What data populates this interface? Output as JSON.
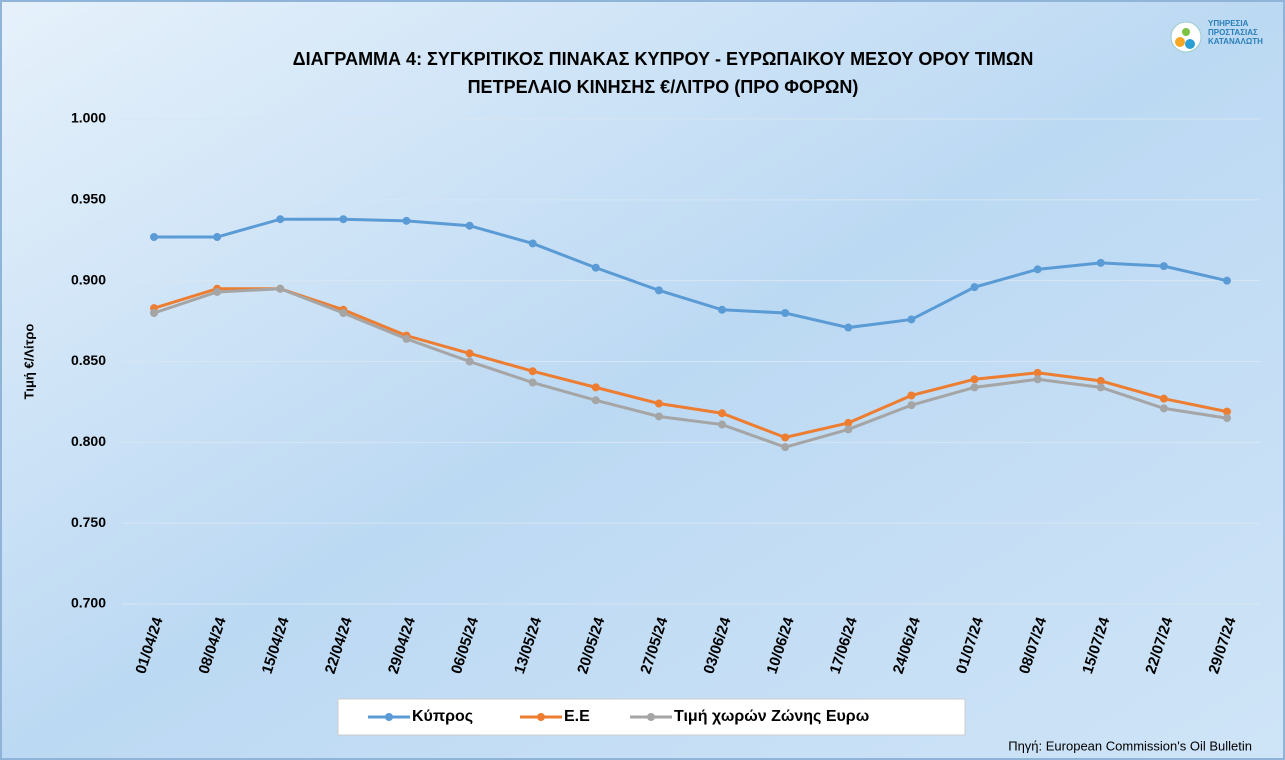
{
  "chart_data": {
    "type": "line",
    "title": [
      "ΔΙΑΓΡΑΜΜΑ 4: ΣΥΓΚΡΙΤΙΚΟΣ ΠΙΝΑΚΑΣ ΚΥΠΡΟΥ - ΕΥΡΩΠΑΙΚΟΥ ΜΕΣΟΥ ΟΡΟΥ ΤΙΜΩΝ",
      "ΠΕΤΡΕΛΑΙΟ ΚΙΝΗΣΗΣ €/ΛΙΤΡΟ (ΠΡΟ ΦΟΡΩΝ)"
    ],
    "logo": [
      "ΥΠΗΡΕΣΙΑ",
      "ΠΡΟΣΤΑΣΙΑΣ",
      "ΚΑΤΑΝΑΛΩΤΗ"
    ],
    "y_label": "Τιμή €/Λίτρο",
    "source": "Πηγή: European Commission's Oil Bulletin",
    "categories": [
      "01/04/24",
      "08/04/24",
      "15/04/24",
      "22/04/24",
      "29/04/24",
      "06/05/24",
      "13/05/24",
      "20/05/24",
      "27/05/24",
      "03/06/24",
      "10/06/24",
      "17/06/24",
      "24/06/24",
      "01/07/24",
      "08/07/24",
      "15/07/24",
      "22/07/24",
      "29/07/24"
    ],
    "series": [
      {
        "name": "Κύπρος",
        "color": "#5b9bd5",
        "values": [
          0.927,
          0.927,
          0.938,
          0.938,
          0.937,
          0.934,
          0.923,
          0.908,
          0.894,
          0.882,
          0.88,
          0.871,
          0.876,
          0.896,
          0.907,
          0.911,
          0.909,
          0.9
        ]
      },
      {
        "name": "Ε.Ε",
        "color": "#ed7d31",
        "values": [
          0.883,
          0.895,
          0.895,
          0.882,
          0.866,
          0.855,
          0.844,
          0.834,
          0.824,
          0.818,
          0.803,
          0.812,
          0.829,
          0.839,
          0.843,
          0.838,
          0.827,
          0.819
        ]
      },
      {
        "name": "Τιμή χωρών Ζώνης Ευρω",
        "color": "#a5a5a5",
        "values": [
          0.88,
          0.893,
          0.895,
          0.88,
          0.864,
          0.85,
          0.837,
          0.826,
          0.816,
          0.811,
          0.797,
          0.808,
          0.823,
          0.834,
          0.839,
          0.834,
          0.821,
          0.815
        ]
      }
    ],
    "ylim": [
      0.7,
      1.0
    ],
    "yticks": [
      {
        "value": 0.7,
        "label": "0.700"
      },
      {
        "value": 0.75,
        "label": "0.750"
      },
      {
        "value": 0.8,
        "label": "0.800"
      },
      {
        "value": 0.85,
        "label": "0.850"
      },
      {
        "value": 0.9,
        "label": "0.900"
      },
      {
        "value": 0.95,
        "label": "0.950"
      },
      {
        "value": 1.0,
        "label": "1.000"
      }
    ],
    "grid": true,
    "legend": "bottom"
  }
}
